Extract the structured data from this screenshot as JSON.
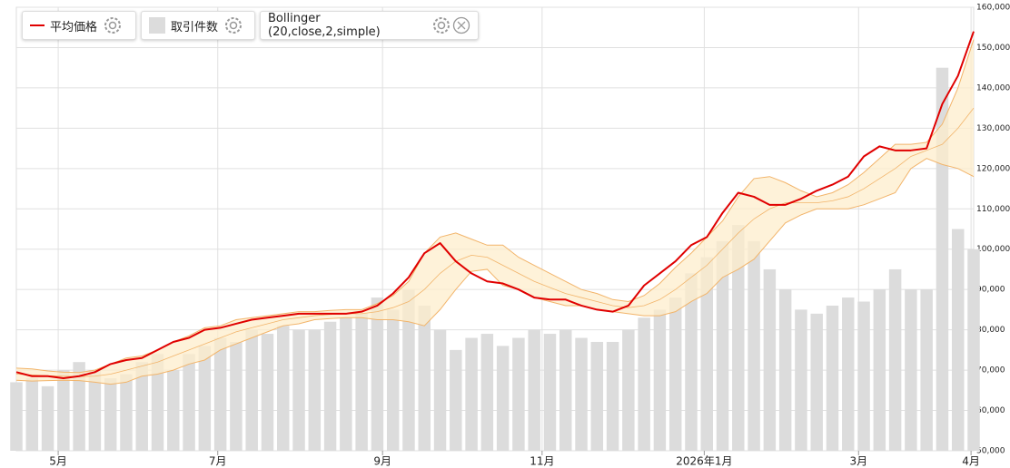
{
  "chart_data": {
    "type": "line",
    "legend": [
      "平均価格",
      "取引件数",
      "Bollinger (20,close,2,simple)"
    ],
    "x": [
      0,
      6,
      12,
      18,
      24,
      30,
      36,
      42,
      48,
      54,
      60,
      66,
      72,
      78,
      84,
      90,
      96,
      102,
      108,
      114,
      120,
      126,
      132,
      138,
      144,
      150,
      156,
      162,
      168,
      174,
      180,
      186,
      192,
      198,
      204,
      210,
      216,
      222,
      228,
      234,
      240,
      246,
      252,
      258,
      264,
      270,
      276,
      282,
      288,
      294,
      300,
      306,
      312,
      318,
      324,
      330,
      336,
      342,
      348,
      354,
      360,
      366
    ],
    "xlim": [
      0,
      366
    ],
    "xticks": [
      {
        "value": 16,
        "label": "5月"
      },
      {
        "value": 77,
        "label": "7月"
      },
      {
        "value": 140,
        "label": "9月"
      },
      {
        "value": 201,
        "label": "11月"
      },
      {
        "value": 263,
        "label": "2026年1月"
      },
      {
        "value": 322,
        "label": "3月"
      },
      {
        "value": 365,
        "label": "4月"
      }
    ],
    "ylim": [
      50000,
      160000
    ],
    "yticks": [
      {
        "value": 50000,
        "label": "50,000"
      },
      {
        "value": 60000,
        "label": "60,000"
      },
      {
        "value": 70000,
        "label": "70,000"
      },
      {
        "value": 80000,
        "label": "80,000"
      },
      {
        "value": 90000,
        "label": "90,000"
      },
      {
        "value": 100000,
        "label": "100,000"
      },
      {
        "value": 110000,
        "label": "110,000"
      },
      {
        "value": 120000,
        "label": "120,000"
      },
      {
        "value": 130000,
        "label": "130,000"
      },
      {
        "value": 140000,
        "label": "140,000"
      },
      {
        "value": 150000,
        "label": "150,000"
      },
      {
        "value": 160000,
        "label": "160,000"
      }
    ],
    "y2lim": [
      0,
      110
    ],
    "grid": true,
    "series": [
      {
        "name": "平均価格",
        "color": "#e00000",
        "values": [
          69500,
          68500,
          68500,
          68000,
          68500,
          69500,
          71500,
          72500,
          73000,
          75000,
          77000,
          78000,
          80000,
          80500,
          81500,
          82500,
          83000,
          83500,
          84000,
          84000,
          84000,
          84000,
          84500,
          86000,
          89000,
          93000,
          99000,
          101500,
          97000,
          94000,
          92000,
          91500,
          90000,
          88000,
          87500,
          87500,
          86000,
          85000,
          84500,
          86000,
          91000,
          94000,
          97000,
          101000,
          103000,
          109000,
          114000,
          113000,
          111000,
          111000,
          112500,
          114500,
          116000,
          118000,
          123000,
          125500,
          124500,
          124500,
          125000,
          136000,
          143000,
          154000
        ]
      },
      {
        "name": "取引件数",
        "color": "#dcdcdc",
        "axis": "y2",
        "values": [
          17,
          18,
          16,
          20,
          22,
          20,
          18,
          19,
          22,
          24,
          20,
          24,
          26,
          28,
          27,
          30,
          29,
          31,
          30,
          30,
          32,
          33,
          34,
          38,
          35,
          40,
          36,
          30,
          25,
          28,
          29,
          26,
          28,
          30,
          29,
          30,
          28,
          27,
          27,
          30,
          33,
          35,
          38,
          44,
          48,
          52,
          56,
          52,
          45,
          40,
          35,
          34,
          36,
          38,
          37,
          40,
          45,
          40,
          40,
          95,
          55,
          50
        ]
      }
    ],
    "bollinger": {
      "name": "Bollinger (20,close,2,simple)",
      "color": "#f2b46a",
      "fill": "#fdedcc",
      "upper": [
        70500,
        70300,
        69800,
        69500,
        69400,
        70000,
        71500,
        73000,
        73500,
        75000,
        77000,
        78500,
        80500,
        81000,
        82500,
        83000,
        83500,
        84000,
        84500,
        84500,
        84800,
        85000,
        85000,
        86500,
        88500,
        92000,
        99000,
        103000,
        104000,
        102500,
        101000,
        101000,
        98000,
        96000,
        94000,
        92000,
        90000,
        89000,
        87500,
        87000,
        88500,
        91500,
        95500,
        99000,
        103000,
        107000,
        113000,
        117500,
        118000,
        116500,
        114500,
        113000,
        114000,
        116000,
        119000,
        122500,
        126000,
        126000,
        126500,
        131000,
        140000,
        152000
      ],
      "middle": [
        69000,
        68800,
        68600,
        68500,
        68400,
        68500,
        69000,
        70000,
        71000,
        72000,
        73500,
        75000,
        76500,
        78000,
        79500,
        80500,
        81500,
        82500,
        83000,
        83500,
        83800,
        84000,
        84000,
        84500,
        85500,
        87000,
        90000,
        94000,
        97000,
        98500,
        98000,
        96000,
        94000,
        92000,
        90500,
        89000,
        88000,
        87000,
        86000,
        85500,
        86000,
        87500,
        90000,
        93000,
        96000,
        100000,
        104000,
        107500,
        110000,
        111500,
        111500,
        111500,
        112000,
        113000,
        115000,
        117500,
        120000,
        123000,
        124500,
        126000,
        130000,
        135000
      ],
      "lower": [
        67500,
        67300,
        67400,
        67500,
        67400,
        67000,
        66500,
        67000,
        68500,
        69000,
        70000,
        71500,
        72500,
        75000,
        76500,
        78000,
        79500,
        81000,
        81500,
        82500,
        82800,
        83000,
        83000,
        82500,
        82500,
        82000,
        81000,
        85000,
        90000,
        94500,
        95000,
        91000,
        90000,
        88000,
        87000,
        86000,
        86000,
        85000,
        84500,
        84000,
        83500,
        83500,
        84500,
        87000,
        89000,
        93000,
        95000,
        97500,
        102000,
        106500,
        108500,
        110000,
        110000,
        110000,
        111000,
        112500,
        114000,
        120000,
        122500,
        121000,
        120000,
        118000
      ]
    }
  }
}
